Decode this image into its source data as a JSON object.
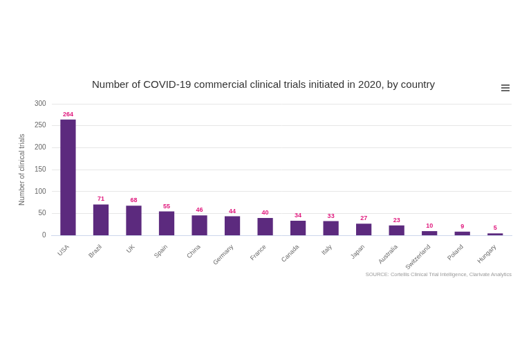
{
  "chart_data": {
    "type": "bar",
    "title": "Number of COVID-19 commercial clinical trials initiated in 2020, by country",
    "y_label": "Number of clinical trials",
    "source": "SOURCE: Cortellis Clinical Trial Intelligence, Clarivate Analytics",
    "categories": [
      "USA",
      "Brazil",
      "UK",
      "Spain",
      "China",
      "Germany",
      "France",
      "Canada",
      "Italy",
      "Japan",
      "Australia",
      "Switzerland",
      "Poland",
      "Hungary"
    ],
    "values": [
      264,
      71,
      68,
      55,
      46,
      44,
      40,
      34,
      33,
      27,
      23,
      10,
      9,
      5
    ],
    "color": "#5c2a7e",
    "ylim": [
      0,
      300
    ],
    "yticks": [
      0,
      50,
      100,
      150,
      200,
      250,
      300
    ],
    "grid": true,
    "data_labels": true
  }
}
